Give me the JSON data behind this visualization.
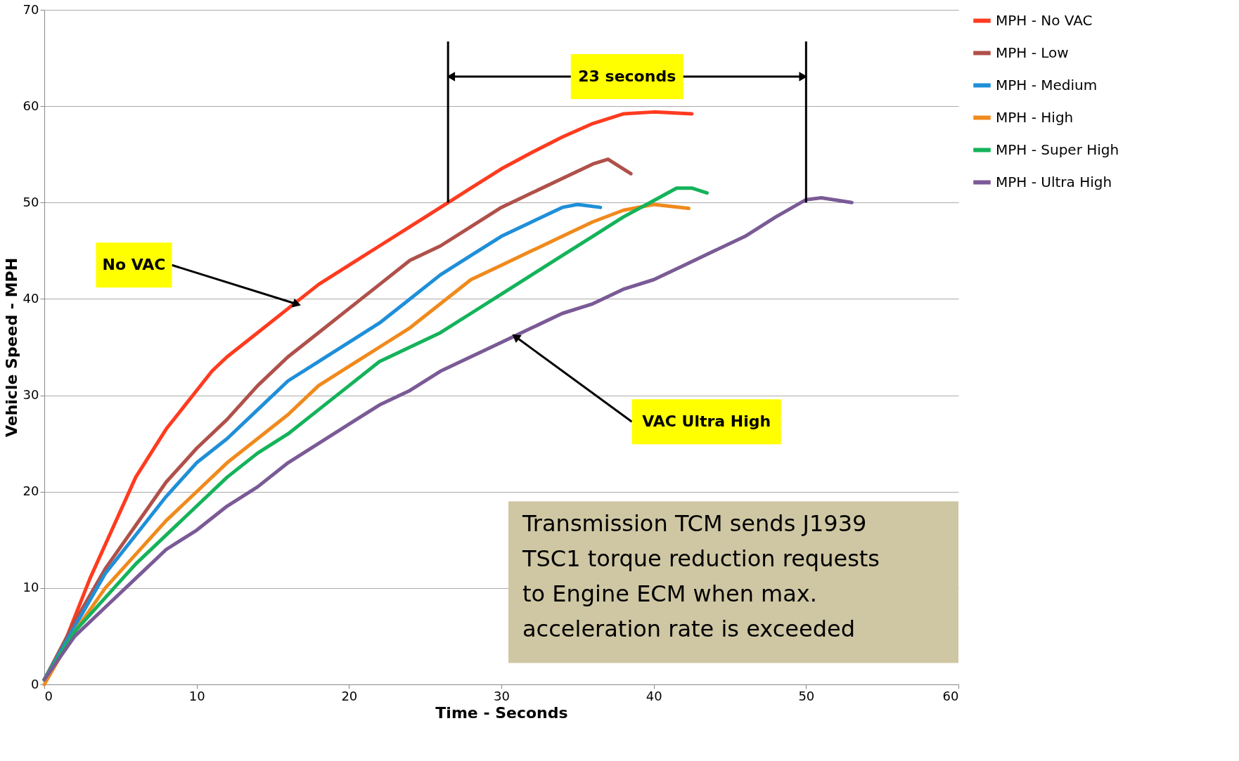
{
  "chart_data": {
    "type": "line",
    "xlabel": "Time - Seconds",
    "ylabel": "Vehicle Speed - MPH",
    "xlim": [
      0,
      60
    ],
    "xticks": [
      0,
      10,
      20,
      30,
      40,
      50,
      60
    ],
    "ylim": [
      0,
      70
    ],
    "yticks": [
      0,
      10,
      20,
      30,
      40,
      50,
      60,
      70
    ],
    "grid": "y",
    "ref_lines": [
      {
        "axis": "x",
        "value": 26.5
      },
      {
        "axis": "x",
        "value": 50
      }
    ],
    "legend": "right",
    "marker": "none",
    "line_style": "solid",
    "series": [
      {
        "name": "MPH - No VAC",
        "color": "#ff3b1f",
        "x": [
          0,
          1,
          2,
          3,
          4,
          5,
          6,
          7,
          8,
          9,
          10,
          11,
          12,
          14,
          16,
          18,
          20,
          22,
          24,
          26.5,
          28,
          30,
          32,
          34,
          36,
          38,
          40,
          42.5
        ],
        "values": [
          0.5,
          3,
          7,
          11,
          14.5,
          18,
          21.5,
          24,
          26.5,
          28.5,
          30.5,
          32.5,
          34,
          36.5,
          39,
          41.5,
          43.5,
          45.5,
          47.5,
          50,
          51.5,
          53.5,
          55.2,
          56.8,
          58.2,
          59.2,
          59.4,
          59.2
        ]
      },
      {
        "name": "MPH - Low",
        "color": "#b0504a",
        "x": [
          0,
          2,
          4,
          6,
          8,
          10,
          12,
          14,
          16,
          18,
          20,
          22,
          24,
          26,
          28,
          30,
          32,
          34,
          36,
          37,
          38,
          38.5
        ],
        "values": [
          0.5,
          6.5,
          12,
          16.5,
          21,
          24.5,
          27.5,
          31,
          34,
          36.5,
          39,
          41.5,
          44,
          45.5,
          47.5,
          49.5,
          51,
          52.5,
          54,
          54.5,
          53.5,
          53
        ]
      },
      {
        "name": "MPH - Medium",
        "color": "#1f8fd8",
        "x": [
          0,
          2,
          4,
          6,
          8,
          10,
          12,
          14,
          16,
          18,
          20,
          22,
          24,
          26,
          28,
          30,
          32,
          34,
          35,
          36.5
        ],
        "values": [
          0.5,
          6,
          11.5,
          15.5,
          19.5,
          23,
          25.5,
          28.5,
          31.5,
          33.5,
          35.5,
          37.5,
          40,
          42.5,
          44.5,
          46.5,
          48,
          49.5,
          49.8,
          49.5
        ]
      },
      {
        "name": "MPH - High",
        "color": "#f08a1c",
        "x": [
          0,
          2,
          4,
          6,
          8,
          10,
          12,
          14,
          16,
          18,
          20,
          22,
          24,
          26,
          28,
          30,
          32,
          34,
          36,
          38,
          40,
          42.3
        ],
        "values": [
          0,
          5.5,
          10,
          13.5,
          17,
          20,
          23,
          25.5,
          28,
          31,
          33,
          35,
          37,
          39.5,
          42,
          43.5,
          45,
          46.5,
          48,
          49.2,
          49.8,
          49.4
        ]
      },
      {
        "name": "MPH - Super High",
        "color": "#14b35a",
        "x": [
          0,
          2,
          4,
          6,
          8,
          10,
          12,
          14,
          16,
          18,
          20,
          22,
          24,
          26,
          28,
          30,
          32,
          34,
          36,
          38,
          40,
          41.5,
          42.5,
          43.5
        ],
        "values": [
          0.5,
          5.5,
          9,
          12.5,
          15.5,
          18.5,
          21.5,
          24,
          26,
          28.5,
          31,
          33.5,
          35,
          36.5,
          38.5,
          40.5,
          42.5,
          44.5,
          46.5,
          48.5,
          50.2,
          51.5,
          51.5,
          51
        ]
      },
      {
        "name": "MPH - Ultra High",
        "color": "#7a5a96",
        "x": [
          0,
          2,
          4,
          6,
          8,
          10,
          12,
          14,
          16,
          18,
          20,
          22,
          24,
          26,
          28,
          30,
          32,
          34,
          36,
          38,
          40,
          42,
          44,
          46,
          48,
          50,
          51,
          53
        ],
        "values": [
          0.5,
          5,
          8,
          11,
          14,
          16,
          18.5,
          20.5,
          23,
          25,
          27,
          29,
          30.5,
          32.5,
          34,
          35.5,
          37,
          38.5,
          39.5,
          41,
          42,
          43.5,
          45,
          46.5,
          48.5,
          50.3,
          50.5,
          50
        ]
      }
    ],
    "annotations": [
      {
        "text": "No VAC",
        "x": 16.5,
        "y": 39.5
      },
      {
        "text": "VAC Ultra High",
        "x": 31,
        "y": 36
      },
      "23 seconds",
      "Transmission TCM sends J1939 TSC1 torque reduction requests to Engine ECM when max. acceleration rate is exceeded"
    ]
  }
}
